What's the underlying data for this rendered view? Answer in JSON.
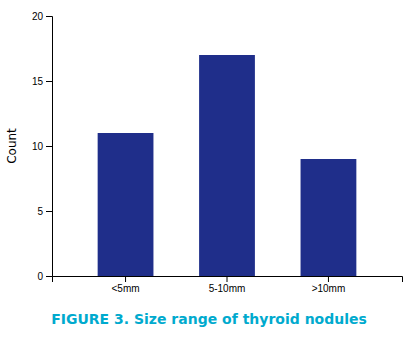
{
  "chart_data": {
    "type": "bar",
    "title": "FIGURE 3. Size range of thyroid nodules",
    "ylabel": "Count",
    "categories": [
      "<5mm",
      "5-10mm",
      ">10mm"
    ],
    "values": [
      11,
      17,
      9
    ],
    "color": "#1f2e8a",
    "ylim": [
      0,
      20
    ],
    "yticks": [
      0,
      5,
      10,
      15,
      20
    ],
    "grid": false
  }
}
